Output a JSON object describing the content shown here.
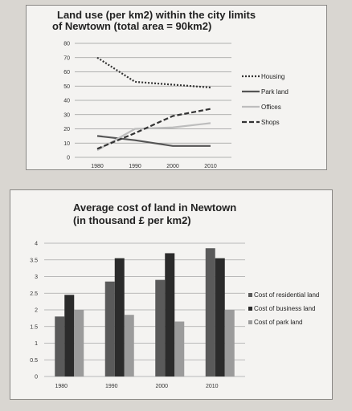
{
  "chart_data": [
    {
      "type": "line",
      "title": "Land use (per km2) within the city limits",
      "subtitle": "of Newtown (total area = 90km2)",
      "x": [
        1980,
        1990,
        2000,
        2010
      ],
      "xticks": [
        "1980",
        "1990",
        "2000",
        "2010"
      ],
      "ylim": [
        0,
        80
      ],
      "yticks": [
        "0",
        "10",
        "20",
        "30",
        "40",
        "50",
        "60",
        "70",
        "80"
      ],
      "grid": true,
      "legend": "right",
      "series": [
        {
          "name": "Housing",
          "values": [
            70,
            53,
            51,
            49
          ],
          "color": "#333333",
          "dash": "dotted"
        },
        {
          "name": "Park land",
          "values": [
            15,
            12,
            8,
            8
          ],
          "color": "#555555",
          "dash": "solid"
        },
        {
          "name": "Offices",
          "values": [
            5,
            20,
            21,
            24
          ],
          "color": "#bdbdbd",
          "dash": "solid"
        },
        {
          "name": "Shops",
          "values": [
            6,
            17,
            29,
            34
          ],
          "color": "#333333",
          "dash": "dashed"
        }
      ]
    },
    {
      "type": "bar",
      "title": "Average cost of land in Newtown",
      "subtitle": "(in thousand £ per km2)",
      "categories": [
        "1980",
        "1990",
        "2000",
        "2010"
      ],
      "ylim": [
        0,
        4
      ],
      "yticks": [
        "0",
        "0.5",
        "1",
        "1.5",
        "2",
        "2.5",
        "3",
        "3.5",
        "4"
      ],
      "grid": true,
      "legend": "right",
      "series": [
        {
          "name": "Cost of residential land",
          "values": [
            1.8,
            2.85,
            2.9,
            3.85
          ],
          "color": "#5a5a5a"
        },
        {
          "name": "Cost of business land",
          "values": [
            2.45,
            3.55,
            3.7,
            3.55
          ],
          "color": "#2b2b2b"
        },
        {
          "name": "Cost of park land",
          "values": [
            2.0,
            1.85,
            1.65,
            2.0
          ],
          "color": "#9b9b9b"
        }
      ]
    }
  ]
}
